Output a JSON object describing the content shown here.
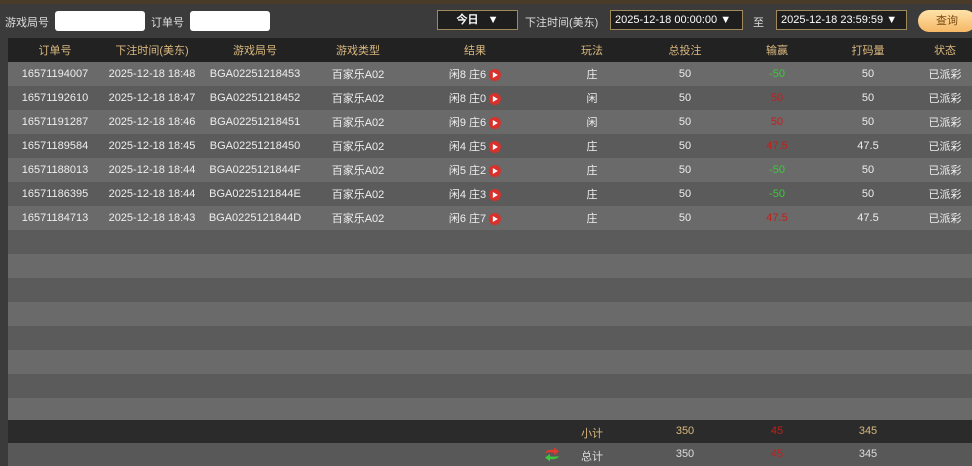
{
  "filters": {
    "round_label": "游戏局号",
    "round_value": "",
    "order_label": "订单号",
    "order_value": "",
    "period": "今日",
    "time_label": "下注时间(美东)",
    "start": "2025-12-18 00:00:00",
    "to": "至",
    "end": "2025-12-18 23:59:59",
    "query": "查询"
  },
  "columns": [
    "订单号",
    "下注时间(美东)",
    "游戏局号",
    "游戏类型",
    "结果",
    "玩法",
    "总投注",
    "输赢",
    "打码量",
    "状态"
  ],
  "rows": [
    [
      "16571194007",
      "2025-12-18 18:48",
      "BGA02251218453",
      "百家乐A02",
      "闲8 庄6",
      "庄",
      "50",
      "-50",
      "50",
      "已派彩"
    ],
    [
      "16571192610",
      "2025-12-18 18:47",
      "BGA02251218452",
      "百家乐A02",
      "闲8 庄0",
      "闲",
      "50",
      "50",
      "50",
      "已派彩"
    ],
    [
      "16571191287",
      "2025-12-18 18:46",
      "BGA02251218451",
      "百家乐A02",
      "闲9 庄6",
      "闲",
      "50",
      "50",
      "50",
      "已派彩"
    ],
    [
      "16571189584",
      "2025-12-18 18:45",
      "BGA02251218450",
      "百家乐A02",
      "闲4 庄5",
      "庄",
      "50",
      "47.5",
      "47.5",
      "已派彩"
    ],
    [
      "16571188013",
      "2025-12-18 18:44",
      "BGA0225121844F",
      "百家乐A02",
      "闲5 庄2",
      "庄",
      "50",
      "-50",
      "50",
      "已派彩"
    ],
    [
      "16571186395",
      "2025-12-18 18:44",
      "BGA0225121844E",
      "百家乐A02",
      "闲4 庄3",
      "庄",
      "50",
      "-50",
      "50",
      "已派彩"
    ],
    [
      "16571184713",
      "2025-12-18 18:43",
      "BGA0225121844D",
      "百家乐A02",
      "闲6 庄7",
      "庄",
      "50",
      "47.5",
      "47.5",
      "已派彩"
    ]
  ],
  "subtotal": {
    "label": "小计",
    "bet": "350",
    "winloss": "45",
    "valid": "345"
  },
  "total": {
    "label": "总计",
    "bet": "350",
    "winloss": "45",
    "valid": "345"
  },
  "colors": {
    "win": "#c0201c",
    "loss": "#3cc83c",
    "header_text": "#d9b87e"
  }
}
